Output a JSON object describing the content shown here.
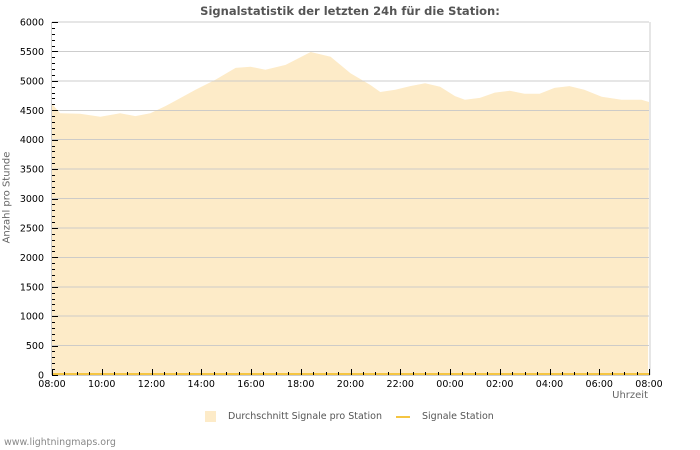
{
  "header": {
    "title": "Signalstatistik der letzten 24h für die Station:"
  },
  "axes": {
    "ylabel": "Anzahl pro Stunde",
    "xlabel": "Uhrzeit"
  },
  "legend": {
    "items": [
      {
        "label": "Durchschnitt Signale pro Station",
        "type": "area",
        "color": "#fdebc8"
      },
      {
        "label": "Signale Station",
        "type": "line",
        "color": "#f5c542"
      }
    ]
  },
  "footer": {
    "credit": "www.lightningmaps.org"
  },
  "chart_data": {
    "type": "area",
    "title": "Signalstatistik der letzten 24h für die Station:",
    "xlabel": "Uhrzeit",
    "ylabel": "Anzahl pro Stunde",
    "ylim": [
      0,
      6000
    ],
    "yticks": [
      0,
      500,
      1000,
      1500,
      2000,
      2500,
      3000,
      3500,
      4000,
      4500,
      5000,
      5500,
      6000
    ],
    "xticks": [
      "08:00",
      "10:00",
      "12:00",
      "14:00",
      "16:00",
      "18:00",
      "20:00",
      "22:00",
      "00:00",
      "02:00",
      "04:00",
      "06:00",
      "08:00"
    ],
    "grid": true,
    "legend_position": "bottom",
    "x_hours": [
      0,
      0.33,
      1.13,
      1.94,
      2.74,
      3.35,
      3.95,
      4.56,
      4.96,
      5.77,
      6.57,
      7.38,
      7.98,
      8.58,
      9.39,
      10.4,
      11.2,
      12.0,
      12.8,
      13.2,
      13.8,
      14.4,
      15.0,
      15.6,
      16.2,
      16.6,
      17.2,
      17.8,
      18.4,
      19.0,
      19.6,
      20.2,
      20.8,
      21.4,
      22.1,
      22.9,
      23.7,
      24.0
    ],
    "series": [
      {
        "name": "Durchschnitt Signale pro Station",
        "type": "area",
        "color": "#fdebc8",
        "values": [
          4610,
          4450,
          4440,
          4390,
          4450,
          4400,
          4450,
          4570,
          4660,
          4850,
          5020,
          5220,
          5240,
          5190,
          5270,
          5490,
          5410,
          5130,
          4930,
          4810,
          4850,
          4910,
          4960,
          4900,
          4740,
          4680,
          4710,
          4800,
          4830,
          4780,
          4780,
          4880,
          4910,
          4850,
          4730,
          4680,
          4680,
          4640
        ]
      },
      {
        "name": "Signale Station",
        "type": "line",
        "color": "#f5c542",
        "values": [
          0,
          0,
          0,
          0,
          0,
          0,
          0,
          0,
          0,
          0,
          0,
          0,
          0,
          0,
          0,
          0,
          0,
          0,
          0,
          0,
          0,
          0,
          0,
          0,
          0,
          0,
          0,
          0,
          0,
          0,
          0,
          0,
          0,
          0,
          0,
          0,
          0,
          0
        ]
      }
    ]
  }
}
